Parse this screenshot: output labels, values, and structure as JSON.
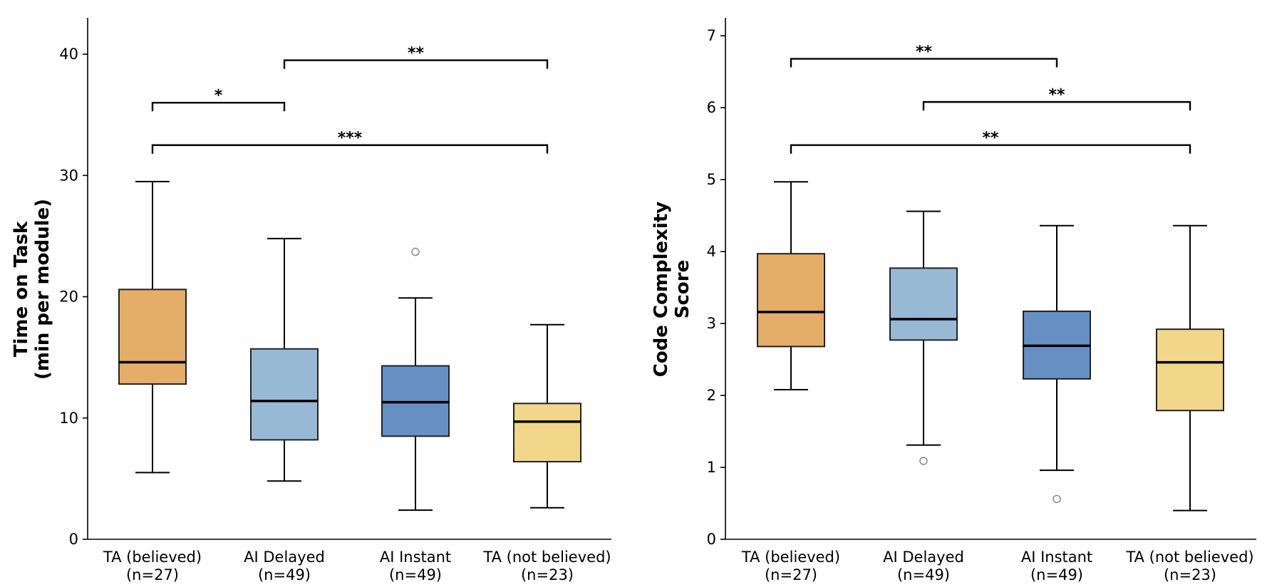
{
  "colors": {
    "TA (believed)": "#e4ae68",
    "AI Delayed": "#98b9d6",
    "AI Instant": "#668fc4",
    "TA (not believed)": "#f2d78b"
  },
  "chart_data": [
    {
      "type": "box",
      "ylabel_lines": [
        "Time on Task",
        "(min per module)"
      ],
      "ylim": [
        0,
        43
      ],
      "yticks": [
        0,
        10,
        20,
        30,
        40
      ],
      "categories": [
        {
          "name": "TA (believed)",
          "n_label": "(n=27)"
        },
        {
          "name": "AI Delayed",
          "n_label": "(n=49)"
        },
        {
          "name": "AI Instant",
          "n_label": "(n=49)"
        },
        {
          "name": "TA (not believed)",
          "n_label": "(n=23)"
        }
      ],
      "boxes": [
        {
          "whislo": 5.5,
          "q1": 12.8,
          "med": 14.6,
          "q3": 20.6,
          "whishi": 29.5,
          "fliers": []
        },
        {
          "whislo": 4.8,
          "q1": 8.2,
          "med": 11.4,
          "q3": 15.7,
          "whishi": 24.8,
          "fliers": []
        },
        {
          "whislo": 2.4,
          "q1": 8.5,
          "med": 11.3,
          "q3": 14.3,
          "whishi": 19.9,
          "fliers": [
            23.7
          ]
        },
        {
          "whislo": 2.6,
          "q1": 6.4,
          "med": 9.7,
          "q3": 11.2,
          "whishi": 17.7,
          "fliers": []
        }
      ],
      "significance": [
        {
          "from": 0,
          "to": 1,
          "y": 36.0,
          "label": "*"
        },
        {
          "from": 1,
          "to": 3,
          "y": 39.5,
          "label": "**"
        },
        {
          "from": 0,
          "to": 3,
          "y": 32.5,
          "label": "***"
        }
      ]
    },
    {
      "type": "box",
      "ylabel_lines": [
        "Code Complexity",
        "Score"
      ],
      "ylim": [
        0,
        7.25
      ],
      "yticks": [
        0,
        1,
        2,
        3,
        4,
        5,
        6,
        7
      ],
      "categories": [
        {
          "name": "TA (believed)",
          "n_label": "(n=27)"
        },
        {
          "name": "AI Delayed",
          "n_label": "(n=49)"
        },
        {
          "name": "AI Instant",
          "n_label": "(n=49)"
        },
        {
          "name": "TA (not believed)",
          "n_label": "(n=23)"
        }
      ],
      "boxes": [
        {
          "whislo": 2.08,
          "q1": 2.68,
          "med": 3.16,
          "q3": 3.97,
          "whishi": 4.97,
          "fliers": []
        },
        {
          "whislo": 1.31,
          "q1": 2.77,
          "med": 3.06,
          "q3": 3.77,
          "whishi": 4.56,
          "fliers": [
            1.09
          ]
        },
        {
          "whislo": 0.96,
          "q1": 2.23,
          "med": 2.69,
          "q3": 3.17,
          "whishi": 4.36,
          "fliers": [
            0.56
          ]
        },
        {
          "whislo": 0.4,
          "q1": 1.79,
          "med": 2.46,
          "q3": 2.92,
          "whishi": 4.36,
          "fliers": []
        }
      ],
      "significance": [
        {
          "from": 0,
          "to": 2,
          "y": 6.68,
          "label": "**"
        },
        {
          "from": 1,
          "to": 3,
          "y": 6.08,
          "label": "**"
        },
        {
          "from": 0,
          "to": 3,
          "y": 5.48,
          "label": "**"
        }
      ]
    }
  ]
}
